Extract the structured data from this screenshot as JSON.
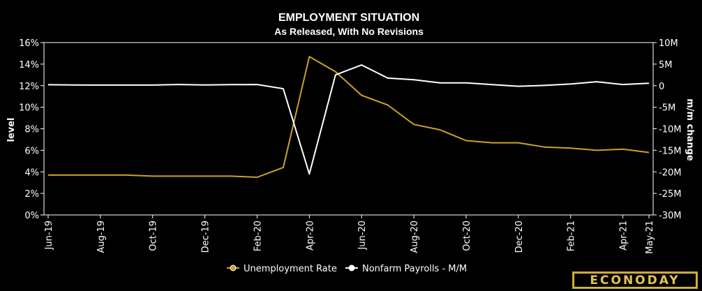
{
  "chart_data": {
    "type": "line",
    "title": "EMPLOYMENT SITUATION",
    "subtitle": "As Released, With No Revisions",
    "ylabel_left": "level",
    "ylabel_right": "m/m change",
    "y_left_range": [
      0,
      16
    ],
    "y_left_ticks": [
      "0%",
      "2%",
      "4%",
      "6%",
      "8%",
      "10%",
      "12%",
      "14%",
      "16%"
    ],
    "y_right_range": [
      -30,
      10
    ],
    "y_right_ticks": [
      "-30M",
      "-25M",
      "-20M",
      "-15M",
      "-10M",
      "-5M",
      "0",
      "5M",
      "10M"
    ],
    "x": [
      "Jun-19",
      "Jul-19",
      "Aug-19",
      "Sep-19",
      "Oct-19",
      "Nov-19",
      "Dec-19",
      "Jan-20",
      "Feb-20",
      "Mar-20",
      "Apr-20",
      "May-20",
      "Jun-20",
      "Jul-20",
      "Aug-20",
      "Sep-20",
      "Oct-20",
      "Nov-20",
      "Dec-20",
      "Jan-21",
      "Feb-21",
      "Mar-21",
      "Apr-21",
      "May-21"
    ],
    "x_tick_labels": [
      "Jun-19",
      "Aug-19",
      "Oct-19",
      "Dec-19",
      "Feb-20",
      "Apr-20",
      "Jun-20",
      "Aug-20",
      "Oct-20",
      "Dec-20",
      "Feb-21",
      "Apr-21",
      "May-21"
    ],
    "grid": false,
    "legend_position": "bottom",
    "series": [
      {
        "name": "Unemployment Rate",
        "axis": "left",
        "color": "#c9a227",
        "values": [
          3.7,
          3.7,
          3.7,
          3.7,
          3.6,
          3.6,
          3.6,
          3.6,
          3.5,
          4.4,
          14.7,
          13.3,
          11.1,
          10.2,
          8.4,
          7.9,
          6.9,
          6.7,
          6.7,
          6.3,
          6.2,
          6.0,
          6.1,
          5.8
        ]
      },
      {
        "name": "Nonfarm Payrolls - M/M",
        "axis": "right",
        "color": "#ffffff",
        "values": [
          0.22,
          0.16,
          0.13,
          0.14,
          0.13,
          0.27,
          0.15,
          0.23,
          0.27,
          -0.7,
          -20.5,
          2.5,
          4.8,
          1.76,
          1.37,
          0.66,
          0.64,
          0.25,
          -0.14,
          0.05,
          0.38,
          0.92,
          0.27,
          0.56
        ]
      }
    ]
  },
  "brand": {
    "logo": "ECONODAY"
  }
}
